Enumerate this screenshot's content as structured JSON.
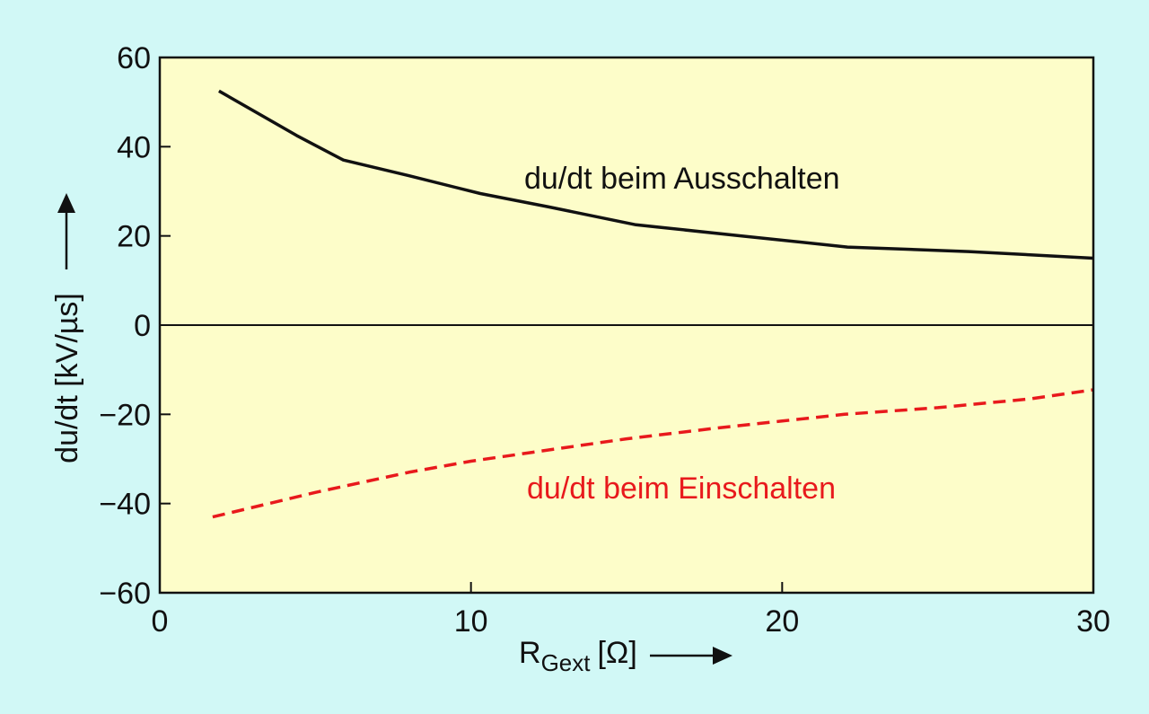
{
  "chart_data": {
    "type": "line",
    "xlabel": {
      "main": "R",
      "sub": "Gext",
      "unit": "[Ω]"
    },
    "ylabel": "du/dt [kV/µs]",
    "xlim": [
      0,
      30
    ],
    "ylim": [
      -60,
      60
    ],
    "xticks": [
      "0",
      "10",
      "20",
      "30"
    ],
    "yticks": [
      "60",
      "40",
      "20",
      "0",
      "−20",
      "−40",
      "−60"
    ],
    "grid": false,
    "colors": {
      "plot_bg": "#fdfdc9",
      "page_bg": "#d1f8f6"
    },
    "series": [
      {
        "name": "du/dt beim Ausschalten",
        "color": "#111111",
        "style": "solid",
        "x": [
          1.9,
          4.4,
          5.9,
          8.0,
          10.3,
          12.5,
          15.3,
          18.7,
          22.1,
          26.0,
          30.0
        ],
        "y": [
          52.5,
          42.5,
          37.0,
          33.5,
          29.5,
          26.5,
          22.5,
          20.0,
          17.5,
          16.5,
          15.0
        ]
      },
      {
        "name": "du/dt beim Einschalten",
        "color": "#e8191c",
        "style": "dashed",
        "x": [
          1.7,
          5.0,
          8.0,
          10.0,
          12.0,
          15.0,
          18.0,
          20.0,
          22.0,
          25.0,
          28.0,
          30.0
        ],
        "y": [
          -43.0,
          -37.5,
          -33.0,
          -30.5,
          -28.5,
          -25.5,
          -23.0,
          -21.5,
          -20.0,
          -18.5,
          -16.5,
          -14.5
        ]
      }
    ]
  }
}
